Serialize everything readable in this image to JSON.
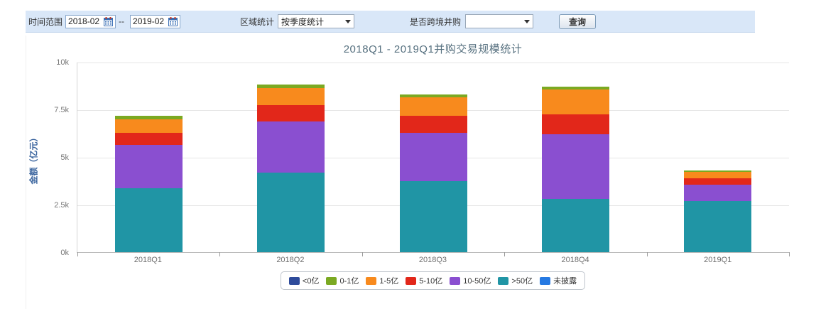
{
  "toolbar": {
    "time_range_label": "时间范围",
    "date_from": "2018-02",
    "date_separator": "--",
    "date_to": "2019-02",
    "region_label": "区域统计",
    "region_select_value": "按季度统计",
    "crossborder_label": "是否跨境并购",
    "crossborder_select_value": "",
    "query_button": "查询"
  },
  "chart_data": {
    "type": "bar",
    "stacked": true,
    "title": "2018Q1 - 2019Q1并购交易规模统计",
    "ylabel": "金额（亿元）",
    "categories": [
      "2018Q1",
      "2018Q2",
      "2018Q3",
      "2018Q4",
      "2019Q1"
    ],
    "series": [
      {
        "name": "<0亿",
        "color": "#2e4b9b",
        "values": [
          0,
          0,
          0,
          0,
          0
        ]
      },
      {
        "name": "0-1亿",
        "color": "#7ba922",
        "values": [
          180,
          190,
          160,
          170,
          90
        ]
      },
      {
        "name": "1-5亿",
        "color": "#f88a1d",
        "values": [
          710,
          900,
          970,
          1280,
          350
        ]
      },
      {
        "name": "5-10亿",
        "color": "#e2271a",
        "values": [
          620,
          830,
          870,
          1050,
          340
        ]
      },
      {
        "name": "10-50亿",
        "color": "#8a4fd0",
        "values": [
          2290,
          2700,
          2560,
          3410,
          840
        ]
      },
      {
        "name": ">50亿",
        "color": "#2095a5",
        "values": [
          3350,
          4180,
          3720,
          2790,
          2690
        ]
      },
      {
        "name": "未披露",
        "color": "#2579e2",
        "values": [
          0,
          0,
          0,
          0,
          0
        ]
      }
    ],
    "ylim": [
      0,
      10000
    ],
    "yticks": [
      "0k",
      "2.5k",
      "5k",
      "7.5k",
      "10k"
    ],
    "grid": true,
    "legend_position": "bottom"
  }
}
